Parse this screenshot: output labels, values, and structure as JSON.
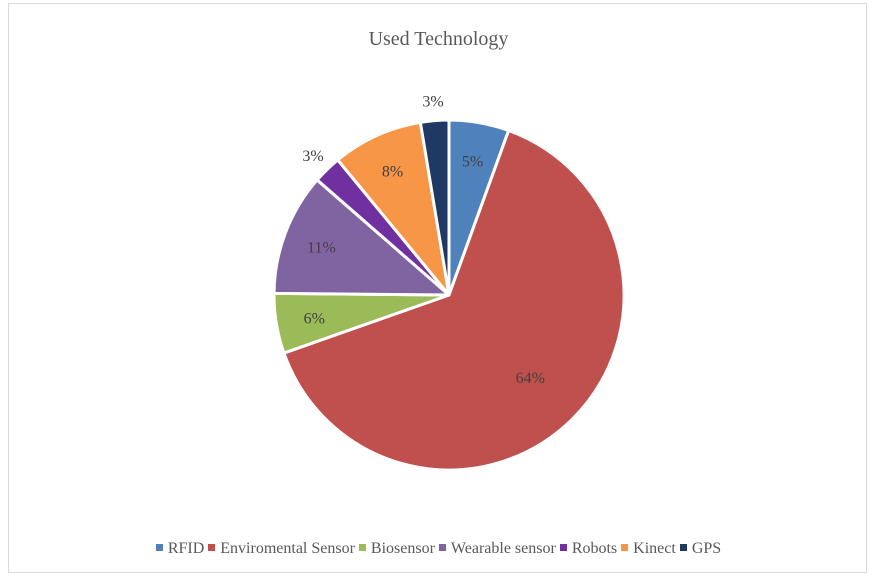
{
  "chart_data": {
    "type": "pie",
    "title": "Used Technology",
    "legend_position": "bottom",
    "categories": [
      "RFID",
      "Enviromental Sensor",
      "Biosensor",
      "Wearable sensor",
      "Robots",
      "Kinect",
      "GPS"
    ],
    "values": [
      5.5,
      63.7,
      5.5,
      11.2,
      2.6,
      8.3,
      2.6
    ],
    "labels": [
      "5%",
      "64%",
      "6%",
      "11%",
      "3%",
      "8%",
      "3%"
    ],
    "colors": [
      "#4F81BD",
      "#C0504D",
      "#9BBB59",
      "#8064A2",
      "#7030A0",
      "#F79646",
      "#1F3864"
    ]
  }
}
